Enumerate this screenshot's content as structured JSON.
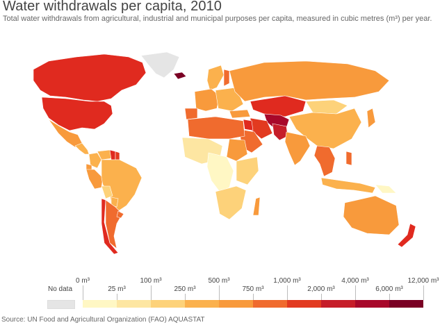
{
  "title": "Water withdrawals per capita, 2010",
  "subtitle": "Total water withdrawals from agricultural, industrial and municipal purposes per capita, measured in cubic metres (m³) per year.",
  "legend": {
    "no_data": "No data",
    "upper_ticks": [
      "0 m³",
      "100 m³",
      "500 m³",
      "1,000 m³",
      "4,000 m³",
      "12,000 m³"
    ],
    "lower_ticks": [
      "25 m³",
      "250 m³",
      "750 m³",
      "2,000 m³",
      "6,000 m³"
    ],
    "colors": [
      "#fff7c4",
      "#fde6a2",
      "#fdd27a",
      "#fbb14d",
      "#f89a3c",
      "#f06b2e",
      "#e23a20",
      "#c61d29",
      "#a8082a",
      "#7a0024"
    ],
    "no_data_color": "#e5e5e5"
  },
  "source": "Source: UN Food and Agricultural Organization (FAO) AQUASTAT",
  "regions": [
    {
      "name": "Canada",
      "color": "#e02a1f"
    },
    {
      "name": "United States",
      "color": "#e02a1f"
    },
    {
      "name": "Greenland",
      "color": "#e5e5e5"
    },
    {
      "name": "Mexico",
      "color": "#f89a3c"
    },
    {
      "name": "Central America",
      "color": "#fbb14d"
    },
    {
      "name": "Colombia",
      "color": "#fbb14d"
    },
    {
      "name": "Venezuela",
      "color": "#fbb14d"
    },
    {
      "name": "Guyana",
      "color": "#e02a1f"
    },
    {
      "name": "Suriname",
      "color": "#e23a20"
    },
    {
      "name": "Ecuador",
      "color": "#f89a3c"
    },
    {
      "name": "Peru",
      "color": "#f89a3c"
    },
    {
      "name": "Brazil",
      "color": "#fbb14d"
    },
    {
      "name": "Bolivia",
      "color": "#fdd27a"
    },
    {
      "name": "Paraguay",
      "color": "#fbb14d"
    },
    {
      "name": "Argentina",
      "color": "#f06b2e"
    },
    {
      "name": "Chile",
      "color": "#e02a1f"
    },
    {
      "name": "Uruguay",
      "color": "#f06b2e"
    },
    {
      "name": "Iceland",
      "color": "#7a0024"
    },
    {
      "name": "Scandinavia",
      "color": "#fbb14d"
    },
    {
      "name": "Finland",
      "color": "#f06b2e"
    },
    {
      "name": "Western Europe",
      "color": "#f89a3c"
    },
    {
      "name": "Iberia",
      "color": "#f06b2e"
    },
    {
      "name": "Eastern Europe",
      "color": "#fbb14d"
    },
    {
      "name": "Russia",
      "color": "#f89a3c"
    },
    {
      "name": "Kazakhstan",
      "color": "#e02a1f"
    },
    {
      "name": "Central Asia",
      "color": "#a8082a"
    },
    {
      "name": "Mongolia",
      "color": "#fdd27a"
    },
    {
      "name": "China",
      "color": "#fbb14d"
    },
    {
      "name": "Turkey",
      "color": "#f89a3c"
    },
    {
      "name": "Iran",
      "color": "#e23a20"
    },
    {
      "name": "Iraq",
      "color": "#e02a1f"
    },
    {
      "name": "Saudi Arabia",
      "color": "#f06b2e"
    },
    {
      "name": "Pakistan",
      "color": "#c61d29"
    },
    {
      "name": "India",
      "color": "#f89a3c"
    },
    {
      "name": "Southeast Asia",
      "color": "#f06b2e"
    },
    {
      "name": "Philippines",
      "color": "#f06b2e"
    },
    {
      "name": "Indonesia",
      "color": "#fbb14d"
    },
    {
      "name": "Japan",
      "color": "#f89a3c"
    },
    {
      "name": "North Africa",
      "color": "#f06b2e"
    },
    {
      "name": "West Africa",
      "color": "#fde6a2"
    },
    {
      "name": "Central Africa",
      "color": "#fff7c4"
    },
    {
      "name": "Sudan",
      "color": "#f89a3c"
    },
    {
      "name": "East Africa",
      "color": "#fdd27a"
    },
    {
      "name": "Southern Africa",
      "color": "#fdd27a"
    },
    {
      "name": "Madagascar",
      "color": "#f89a3c"
    },
    {
      "name": "Australia",
      "color": "#f89a3c"
    },
    {
      "name": "New Zealand",
      "color": "#e02a1f"
    },
    {
      "name": "Papua New Guinea",
      "color": "#fff7c4"
    }
  ]
}
